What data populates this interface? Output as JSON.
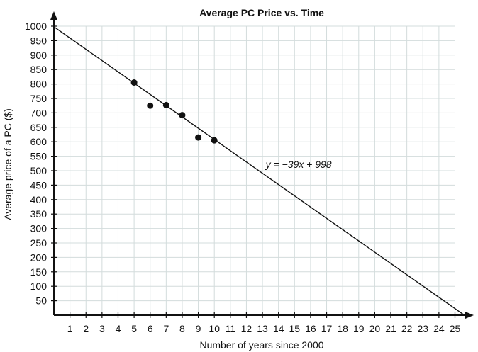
{
  "chart_data": {
    "type": "scatter",
    "title": "Average PC Price vs. Time",
    "xlabel": "Number of years since 2000",
    "ylabel": "Average price of a PC ($)",
    "xlim": [
      0,
      25
    ],
    "ylim": [
      0,
      1000
    ],
    "xticks": [
      1,
      2,
      3,
      4,
      5,
      6,
      7,
      8,
      9,
      10,
      11,
      12,
      13,
      14,
      15,
      16,
      17,
      18,
      19,
      20,
      21,
      22,
      23,
      24,
      25
    ],
    "yticks": [
      50,
      100,
      150,
      200,
      250,
      300,
      350,
      400,
      450,
      500,
      550,
      600,
      650,
      700,
      750,
      800,
      850,
      900,
      950,
      1000
    ],
    "grid": true,
    "points": [
      {
        "x": 5,
        "y": 805
      },
      {
        "x": 6,
        "y": 725
      },
      {
        "x": 7,
        "y": 727
      },
      {
        "x": 8,
        "y": 692
      },
      {
        "x": 9,
        "y": 615
      },
      {
        "x": 10,
        "y": 605
      }
    ],
    "trendline": {
      "slope": -39,
      "intercept": 998,
      "label": "y = −39x + 998"
    }
  }
}
